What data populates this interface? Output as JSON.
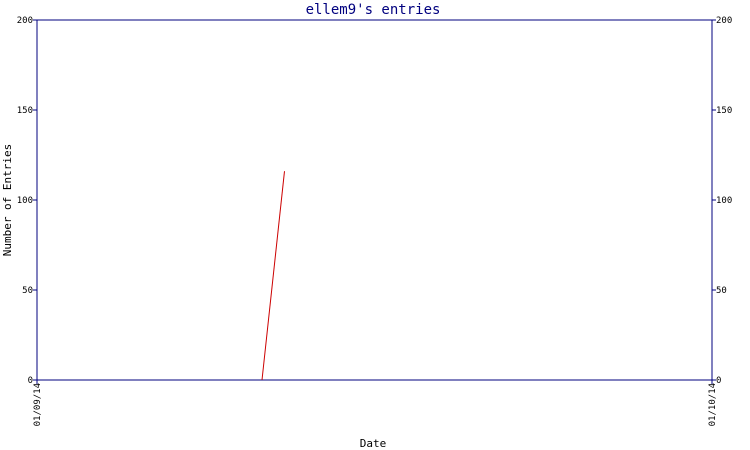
{
  "chart_data": {
    "type": "line",
    "title": "ellem9's entries",
    "xlabel": "Date",
    "ylabel": "Number of Entries",
    "x_tick_labels": [
      "01/09/14",
      "01/10/14"
    ],
    "y_ticks": [
      0,
      50,
      100,
      150,
      200
    ],
    "ylim": [
      0,
      200
    ],
    "x_range": [
      "2014-01-09",
      "2014-01-10"
    ],
    "grid": false,
    "series": [
      {
        "x": [
          "2014-01-09 08:00",
          "2014-01-09 08:48"
        ],
        "y": [
          0,
          116
        ]
      }
    ]
  },
  "colors": {
    "axis": "#00007f",
    "title": "#00007f",
    "series": "#cc0000"
  }
}
